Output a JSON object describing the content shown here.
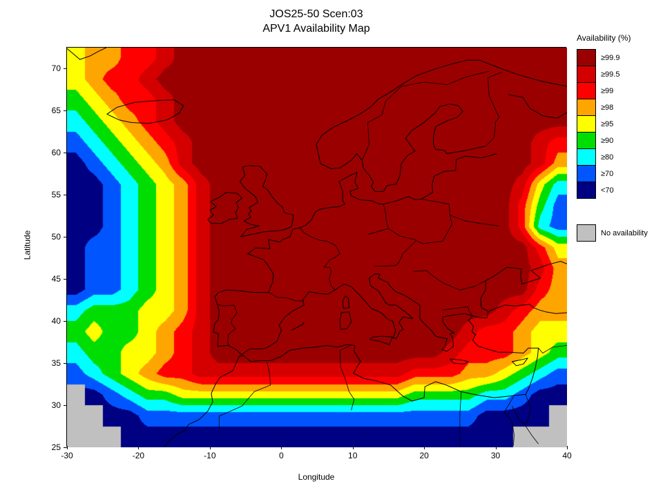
{
  "title": {
    "line1": "JOS25-50 Scen:03",
    "line2": "APV1 Availability Map"
  },
  "axes": {
    "xlabel": "Longitude",
    "ylabel": "Latitude",
    "x_range": [
      -30,
      40
    ],
    "y_range": [
      25,
      72.5
    ],
    "x_ticks": [
      -30,
      -20,
      -10,
      0,
      10,
      20,
      30,
      40
    ],
    "y_ticks": [
      25,
      30,
      35,
      40,
      45,
      50,
      55,
      60,
      65,
      70
    ]
  },
  "legend": {
    "title": "Availability (%)",
    "entries": [
      {
        "label": "≥99.9",
        "color": "#9b0000",
        "level": 9
      },
      {
        "label": "≥99.5",
        "color": "#d40000",
        "level": 8
      },
      {
        "label": "≥99",
        "color": "#ff0000",
        "level": 7
      },
      {
        "label": "≥98",
        "color": "#ffa500",
        "level": 6
      },
      {
        "label": "≥95",
        "color": "#ffff00",
        "level": 5
      },
      {
        "label": "≥90",
        "color": "#00dd00",
        "level": 4
      },
      {
        "label": "≥80",
        "color": "#00ffff",
        "level": 3
      },
      {
        "label": "≥70",
        "color": "#0055ff",
        "level": 2
      },
      {
        "label": "<70",
        "color": "#000082",
        "level": 1
      }
    ],
    "no_availability": {
      "label": "No availability",
      "color": "#c0c0c0",
      "level": 0
    }
  },
  "chart_data": {
    "type": "heatmap",
    "title": "JOS25-50 Scen:03 — APV1 Availability Map",
    "xlabel": "Longitude",
    "ylabel": "Latitude",
    "x_range": [
      -30,
      40
    ],
    "y_range": [
      25,
      72.5
    ],
    "legend_position": "right",
    "grid": false,
    "grid_cols": 28,
    "grid_rows": 19,
    "cell_deg": 2.5,
    "levels": {
      "9": "≥99.9",
      "8": "≥99.5",
      "7": "≥99",
      "6": "≥98",
      "5": "≥95",
      "4": "≥90",
      "3": "≥80",
      "2": "≥70",
      "1": "<70",
      "0": "No availability"
    },
    "level_colors": [
      "#c0c0c0",
      "#000082",
      "#0055ff",
      "#00ffff",
      "#00dd00",
      "#ffff00",
      "#ffa500",
      "#ff0000",
      "#d40000",
      "#9b0000"
    ],
    "rows_top_to_bottom": [
      "5667789999999999999999999999",
      "5677899999999999999999999999",
      "4567789999999999999999999999",
      "3456789999999999999999999999",
      "2345678999999999999999999987",
      "1234568999999999999999999986",
      "1123456899999999999999999853",
      "1123456899999999999999999742",
      "1123456899999999999999999732",
      "1223456899999999999999999975",
      "1223456899999999999999999986",
      "1223456899999999999999999976",
      "3444556899999999999999998766",
      "4544567899999999999999877655",
      "3445567899999999999998777654",
      "2345677888888888888777665432",
      "0123445555555555555444433211",
      "0011222222222222222222211110",
      "0001111111111111111111111000"
    ]
  }
}
